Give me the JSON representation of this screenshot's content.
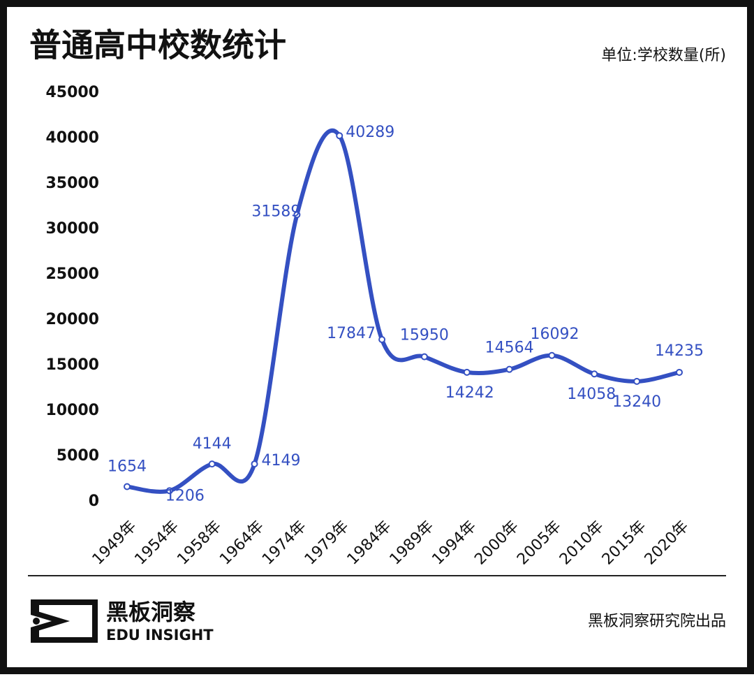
{
  "chart_data": {
    "type": "line",
    "title": "普通高中校数统计",
    "subtitle": "单位:学校数量(所)",
    "categories": [
      "1949年",
      "1954年",
      "1958年",
      "1964年",
      "1974年",
      "1979年",
      "1984年",
      "1989年",
      "1994年",
      "2000年",
      "2005年",
      "2010年",
      "2015年",
      "2020年"
    ],
    "series": [
      {
        "name": "普通高中校数",
        "color": "#3450c2",
        "values": [
          1654,
          1206,
          4144,
          4149,
          31589,
          40289,
          17847,
          15950,
          14242,
          14564,
          16092,
          14058,
          13240,
          14235
        ]
      }
    ],
    "ylim": [
      0,
      45000
    ],
    "yticks": [
      0,
      5000,
      10000,
      15000,
      20000,
      25000,
      30000,
      35000,
      40000,
      45000
    ],
    "grid": false
  },
  "footer": {
    "brand_cn": "黑板洞察",
    "brand_en": "EDU INSIGHT",
    "credit": "黑板洞察研究院出品"
  }
}
